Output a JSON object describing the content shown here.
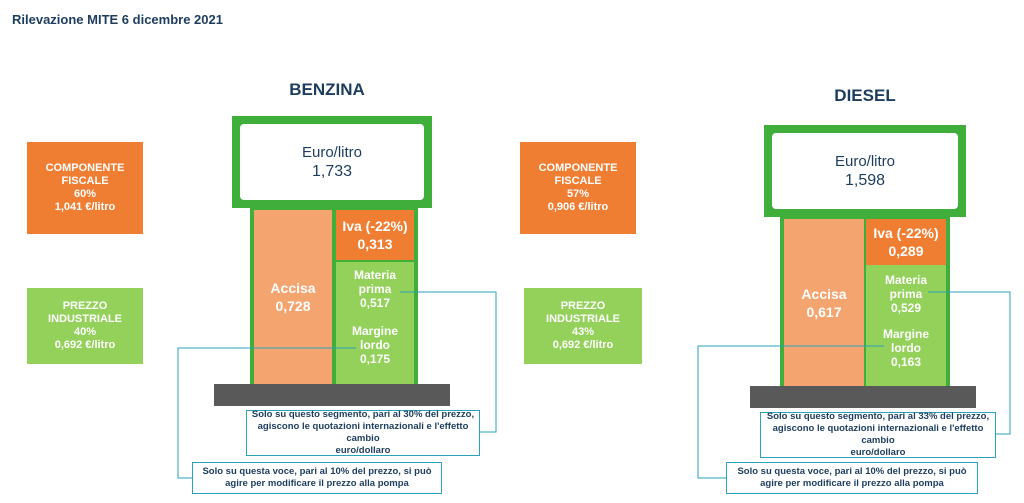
{
  "title": "Rilevazione MITE 6 dicembre 2021",
  "benzina": {
    "name": "BENZINA",
    "unit": "Euro/litro",
    "total": "1,733",
    "fiscale": {
      "line1": "COMPONENTE",
      "line2": "FISCALE",
      "pct": "60%",
      "value": "1,041 €/litro"
    },
    "industriale": {
      "line1": "PREZZO",
      "line2": "INDUSTRIALE",
      "pct": "40%",
      "value": "0,692 €/litro"
    },
    "accisa": {
      "label": "Accisa",
      "value": "0,728"
    },
    "iva": {
      "label": "Iva (-22%)",
      "value": "0,313"
    },
    "materia": {
      "line1": "Materia",
      "line2": "prima",
      "value": "0,517"
    },
    "margine": {
      "line1": "Margine",
      "line2": "lordo",
      "value": "0,175"
    },
    "note_segment": {
      "line1": "Solo su questo segmento, pari al 30% del prezzo,",
      "line2": "agiscono le quotazioni internazionali e l'effetto cambio",
      "line3": "euro/dollaro"
    },
    "note_voce": {
      "line1": "Solo su questa voce, pari al 10% del prezzo, si può",
      "line2": "agire per modificare il prezzo alla pompa"
    }
  },
  "diesel": {
    "name": "DIESEL",
    "unit": "Euro/litro",
    "total": "1,598",
    "fiscale": {
      "line1": "COMPONENTE",
      "line2": "FISCALE",
      "pct": "57%",
      "value": "0,906 €/litro"
    },
    "industriale": {
      "line1": "PREZZO",
      "line2": "INDUSTRIALE",
      "pct": "43%",
      "value": "0,692 €/litro"
    },
    "accisa": {
      "label": "Accisa",
      "value": "0,617"
    },
    "iva": {
      "label": "Iva (-22%)",
      "value": "0,289"
    },
    "materia": {
      "line1": "Materia",
      "line2": "prima",
      "value": "0,529"
    },
    "margine": {
      "line1": "Margine",
      "line2": "lordo",
      "value": "0,163"
    },
    "note_segment": {
      "line1": "Solo su questo segmento, pari al 33% del prezzo,",
      "line2": "agiscono le quotazioni internazionali e l'effetto cambio",
      "line3": "euro/dollaro"
    },
    "note_voce": {
      "line1": "Solo su questa voce, pari al 10% del prezzo, si può",
      "line2": "agire per modificare il prezzo alla pompa"
    }
  },
  "colors": {
    "orange": "#ef7d32",
    "light_orange": "#f4a46e",
    "green": "#93d15a",
    "frame_green": "#3fae3b",
    "base_grey": "#595959",
    "connector": "#2aa3b8",
    "title": "#1c3d5e"
  }
}
